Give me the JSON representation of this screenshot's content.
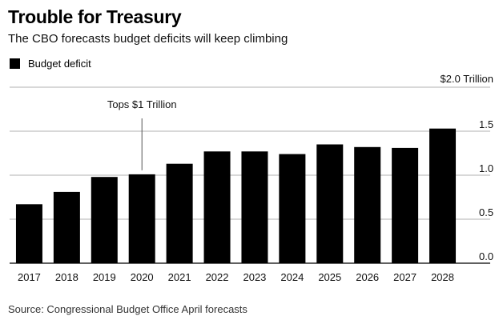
{
  "header": {
    "title": "Trouble for Treasury",
    "subtitle": "The CBO forecasts budget deficits will keep climbing"
  },
  "legend": {
    "label": "Budget deficit"
  },
  "footer": {
    "source": "Source: Congressional Budget Office April forecasts"
  },
  "colors": {
    "bar": "#000000",
    "grid": "#999999",
    "annotation_line": "#555555"
  },
  "chart_data": {
    "type": "bar",
    "categories": [
      "2017",
      "2018",
      "2019",
      "2020",
      "2021",
      "2022",
      "2023",
      "2024",
      "2025",
      "2026",
      "2027",
      "2028"
    ],
    "series": [
      {
        "name": "Budget deficit",
        "values": [
          0.67,
          0.81,
          0.98,
          1.01,
          1.13,
          1.27,
          1.27,
          1.24,
          1.35,
          1.32,
          1.31,
          1.53
        ]
      }
    ],
    "ylim": [
      0,
      2.0
    ],
    "yticks": [
      {
        "value": 0,
        "label": "0.0"
      },
      {
        "value": 0.5,
        "label": "0.5"
      },
      {
        "value": 1.0,
        "label": "1.0"
      },
      {
        "value": 1.5,
        "label": "1.5"
      },
      {
        "value": 2.0,
        "label": "$2.0 Trillion"
      }
    ],
    "grid": true,
    "y_axis_position": "right",
    "legend_position": "top-left",
    "annotations": [
      {
        "category": "2020",
        "text": "Tops $1 Trillion"
      }
    ]
  }
}
